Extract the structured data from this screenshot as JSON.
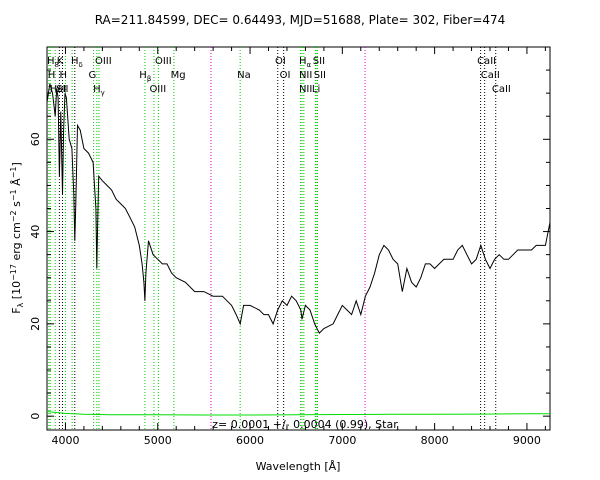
{
  "chart_data": {
    "type": "line",
    "title": "RA=211.84599, DEC= 0.64493, MJD=51688, Plate= 302, Fiber=474",
    "xlabel": "Wavelength [Å]",
    "ylabel": "F_λ [10^-17 erg cm^-2 s^-1 Å^-1]",
    "ylabel_parts": {
      "main": "F",
      "sub": "λ",
      "open": " [10",
      "exp1": "−17",
      "unit1": " erg cm",
      "exp2": "−2",
      "unit2": " s",
      "exp3": "−1",
      "unit3": " Å",
      "exp4": "−1",
      "close": "]"
    },
    "xlim": [
      3800,
      9250
    ],
    "ylim": [
      -3,
      80
    ],
    "xticks": [
      4000,
      5000,
      6000,
      7000,
      8000,
      9000
    ],
    "yticks": [
      0,
      20,
      40,
      60
    ],
    "annotation": "z= 0.0001 +/- 0.0004 (0.99), Star",
    "series": [
      {
        "role": "spectrum",
        "color": "#000000",
        "x": [
          3800,
          3830,
          3860,
          3889,
          3905,
          3920,
          3934,
          3950,
          3968,
          3980,
          3995,
          4010,
          4040,
          4070,
          4090,
          4101,
          4112,
          4130,
          4160,
          4200,
          4250,
          4300,
          4330,
          4340,
          4348,
          4360,
          4400,
          4450,
          4500,
          4550,
          4600,
          4650,
          4700,
          4750,
          4800,
          4830,
          4850,
          4861,
          4872,
          4900,
          4950,
          5000,
          5050,
          5100,
          5150,
          5200,
          5300,
          5400,
          5500,
          5600,
          5700,
          5800,
          5850,
          5893,
          5930,
          6000,
          6100,
          6150,
          6200,
          6250,
          6300,
          6350,
          6400,
          6450,
          6500,
          6550,
          6563,
          6600,
          6650,
          6700,
          6750,
          6800,
          6900,
          6950,
          7000,
          7050,
          7100,
          7150,
          7200,
          7250,
          7300,
          7350,
          7400,
          7450,
          7500,
          7550,
          7600,
          7650,
          7700,
          7750,
          7800,
          7850,
          7900,
          7950,
          8000,
          8050,
          8100,
          8150,
          8200,
          8250,
          8300,
          8350,
          8400,
          8450,
          8500,
          8550,
          8600,
          8650,
          8700,
          8750,
          8800,
          8850,
          8900,
          8950,
          9000,
          9050,
          9100,
          9150,
          9200,
          9250
        ],
        "y": [
          68,
          72,
          70,
          65,
          71,
          69,
          52,
          66,
          48,
          62,
          70,
          69,
          60,
          58,
          48,
          38,
          46,
          63,
          62,
          58,
          57,
          55,
          45,
          32,
          41,
          52,
          51,
          50,
          49,
          47,
          46,
          45,
          43,
          41,
          37,
          33,
          29,
          25,
          31,
          38,
          35,
          34,
          33,
          33,
          31,
          30,
          29,
          27,
          27,
          26,
          26,
          24,
          22,
          20,
          24,
          24,
          23,
          22,
          22,
          20,
          23,
          25,
          24,
          26,
          25,
          23,
          21,
          24,
          23,
          20,
          18,
          19,
          20,
          22,
          24,
          23,
          22,
          25,
          22,
          26,
          28,
          31,
          35,
          37,
          36,
          34,
          33,
          27,
          32,
          29,
          28,
          30,
          33,
          33,
          32,
          33,
          34,
          34,
          34,
          36,
          37,
          35,
          33,
          34,
          37,
          34,
          32,
          34,
          35,
          34,
          34,
          35,
          36,
          36,
          36,
          36,
          37,
          37,
          37,
          42
        ]
      },
      {
        "role": "error",
        "color": "#00dd00",
        "x": [
          3800,
          3900,
          4000,
          4200,
          4500,
          5000,
          5500,
          6000,
          6500,
          7000,
          7500,
          8000,
          8500,
          9000,
          9250
        ],
        "y": [
          1.0,
          0.8,
          0.6,
          0.4,
          0.3,
          0.3,
          0.25,
          0.25,
          0.3,
          0.35,
          0.4,
          0.4,
          0.45,
          0.5,
          0.5
        ]
      }
    ],
    "lines": [
      {
        "x": 3820,
        "color": "green",
        "row": 0,
        "tx": 3800,
        "label": "H",
        "sub": "8"
      },
      {
        "x": 3835,
        "color": "green",
        "row": 1,
        "tx": 3808,
        "label": "H",
        "sub": ""
      },
      {
        "x": 3889,
        "color": "green",
        "row": 2,
        "tx": 3830,
        "label": "HeI",
        "sub": ""
      },
      {
        "x": 3934,
        "color": "black",
        "row": 0,
        "tx": 3905,
        "label": "K",
        "sub": ""
      },
      {
        "x": 3968,
        "color": "black",
        "row": 1,
        "tx": 3935,
        "label": "H",
        "sub": ""
      },
      {
        "x": 4000,
        "color": "green",
        "row": 2,
        "tx": 3900,
        "label": "SII",
        "sub": ""
      },
      {
        "x": 4072,
        "color": "green",
        "row": 2,
        "tx": 4060,
        "label": "",
        "sub": ""
      },
      {
        "x": 4101,
        "color": "black",
        "row": 0,
        "tx": 4060,
        "label": "H",
        "sub": "δ"
      },
      {
        "x": 4305,
        "color": "green",
        "row": 1,
        "tx": 4250,
        "label": "G",
        "sub": ""
      },
      {
        "x": 4340,
        "color": "green",
        "row": 2,
        "tx": 4300,
        "label": "H",
        "sub": "γ"
      },
      {
        "x": 4363,
        "color": "green",
        "row": 0,
        "tx": 4320,
        "label": "OIII",
        "sub": ""
      },
      {
        "x": 4861,
        "color": "green",
        "row": 1,
        "tx": 4800,
        "label": "H",
        "sub": "β"
      },
      {
        "x": 4959,
        "color": "green",
        "row": 2,
        "tx": 4910,
        "label": "OIII",
        "sub": ""
      },
      {
        "x": 5007,
        "color": "green",
        "row": 0,
        "tx": 4970,
        "label": "OIII",
        "sub": ""
      },
      {
        "x": 5175,
        "color": "green",
        "row": 1,
        "tx": 5140,
        "label": "Mg",
        "sub": ""
      },
      {
        "x": 5577,
        "color": "magenta",
        "row": -1,
        "tx": 0,
        "label": "",
        "sub": ""
      },
      {
        "x": 5893,
        "color": "green",
        "row": 1,
        "tx": 5860,
        "label": "Na",
        "sub": ""
      },
      {
        "x": 6300,
        "color": "black",
        "row": 0,
        "tx": 6270,
        "label": "OI",
        "sub": ""
      },
      {
        "x": 6364,
        "color": "black",
        "row": 1,
        "tx": 6320,
        "label": "OI",
        "sub": ""
      },
      {
        "x": 6548,
        "color": "green",
        "row": 1,
        "tx": 6530,
        "label": "NII",
        "sub": ""
      },
      {
        "x": 6563,
        "color": "green",
        "row": 0,
        "tx": 6530,
        "label": "H",
        "sub": "α"
      },
      {
        "x": 6583,
        "color": "green",
        "row": 2,
        "tx": 6530,
        "label": "NII",
        "sub": ""
      },
      {
        "x": 6716,
        "color": "green",
        "row": 0,
        "tx": 6680,
        "label": "SII",
        "sub": ""
      },
      {
        "x": 6731,
        "color": "green",
        "row": 1,
        "tx": 6690,
        "label": "SII",
        "sub": ""
      },
      {
        "x": 6708,
        "color": "green",
        "row": 2,
        "tx": 6670,
        "label": "Li",
        "sub": ""
      },
      {
        "x": 7246,
        "color": "magenta",
        "row": -1,
        "tx": 0,
        "label": "",
        "sub": ""
      },
      {
        "x": 8498,
        "color": "black",
        "row": 0,
        "tx": 8460,
        "label": "CaII",
        "sub": ""
      },
      {
        "x": 8542,
        "color": "black",
        "row": 1,
        "tx": 8500,
        "label": "CaII",
        "sub": ""
      },
      {
        "x": 8662,
        "color": "black",
        "row": 2,
        "tx": 8620,
        "label": "CaII",
        "sub": ""
      }
    ]
  }
}
